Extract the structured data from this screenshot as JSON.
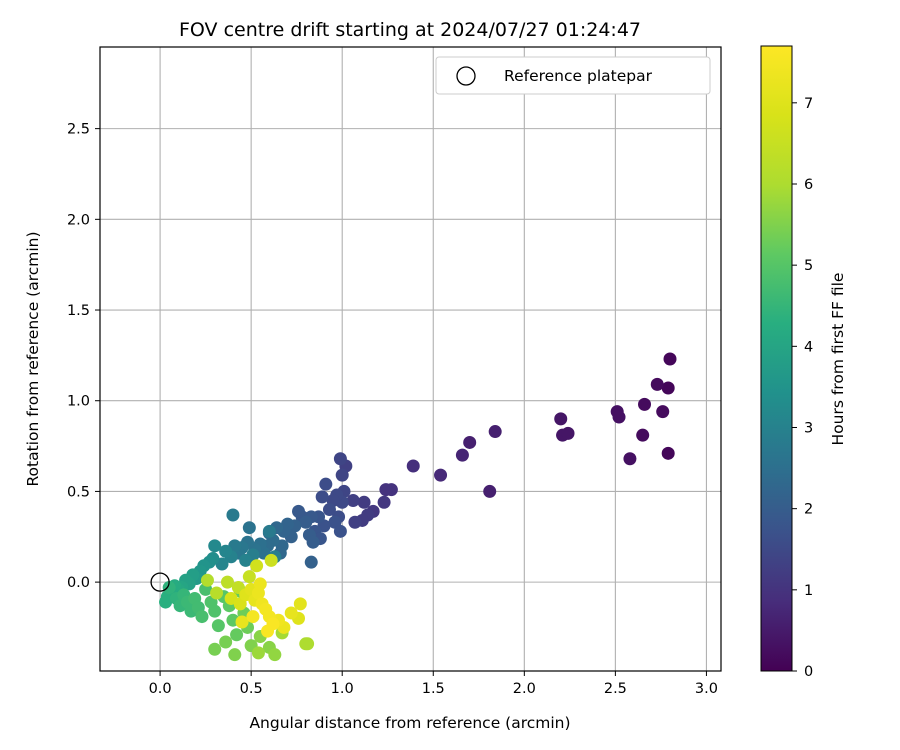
{
  "chart_data": {
    "type": "scatter",
    "title": "FOV centre drift starting at 2024/07/27 01:24:47",
    "xlabel": "Angular distance from reference (arcmin)",
    "ylabel": "Rotation from reference (arcmin)",
    "xlim": [
      -0.33,
      3.08
    ],
    "ylim": [
      -0.49,
      2.95
    ],
    "xticks": [
      0.0,
      0.5,
      1.0,
      1.5,
      2.0,
      2.5,
      3.0
    ],
    "yticks": [
      0.0,
      0.5,
      1.0,
      1.5,
      2.0,
      2.5
    ],
    "grid": true,
    "legend": {
      "placement": "top-right",
      "entries": [
        "Reference platepar"
      ]
    },
    "reference_point": {
      "x": 0.0,
      "y": 0.0
    },
    "colorbar": {
      "label": "Hours from first FF file",
      "range": [
        0,
        7.7
      ],
      "ticks": [
        0,
        1,
        2,
        3,
        4,
        5,
        6,
        7
      ],
      "colormap": "viridis"
    },
    "points": [
      {
        "x": 2.8,
        "y": 1.23,
        "c": 0.1
      },
      {
        "x": 2.79,
        "y": 1.07,
        "c": 0.1
      },
      {
        "x": 2.73,
        "y": 1.09,
        "c": 0.2
      },
      {
        "x": 2.76,
        "y": 0.94,
        "c": 0.2
      },
      {
        "x": 2.66,
        "y": 0.98,
        "c": 0.2
      },
      {
        "x": 2.79,
        "y": 0.71,
        "c": 0.1
      },
      {
        "x": 2.51,
        "y": 0.94,
        "c": 0.3
      },
      {
        "x": 2.52,
        "y": 0.91,
        "c": 0.3
      },
      {
        "x": 2.65,
        "y": 0.81,
        "c": 0.2
      },
      {
        "x": 2.58,
        "y": 0.68,
        "c": 0.3
      },
      {
        "x": 2.2,
        "y": 0.9,
        "c": 0.4
      },
      {
        "x": 2.21,
        "y": 0.81,
        "c": 0.4
      },
      {
        "x": 2.24,
        "y": 0.82,
        "c": 0.4
      },
      {
        "x": 1.84,
        "y": 0.83,
        "c": 0.6
      },
      {
        "x": 1.7,
        "y": 0.77,
        "c": 0.6
      },
      {
        "x": 1.66,
        "y": 0.7,
        "c": 0.7
      },
      {
        "x": 1.81,
        "y": 0.5,
        "c": 0.6
      },
      {
        "x": 1.54,
        "y": 0.59,
        "c": 0.8
      },
      {
        "x": 1.39,
        "y": 0.64,
        "c": 0.9
      },
      {
        "x": 1.27,
        "y": 0.51,
        "c": 1.0
      },
      {
        "x": 1.24,
        "y": 0.51,
        "c": 1.0
      },
      {
        "x": 1.23,
        "y": 0.44,
        "c": 1.1
      },
      {
        "x": 1.17,
        "y": 0.39,
        "c": 1.1
      },
      {
        "x": 1.14,
        "y": 0.37,
        "c": 1.2
      },
      {
        "x": 1.12,
        "y": 0.44,
        "c": 1.2
      },
      {
        "x": 1.11,
        "y": 0.34,
        "c": 1.2
      },
      {
        "x": 1.07,
        "y": 0.33,
        "c": 1.3
      },
      {
        "x": 1.06,
        "y": 0.45,
        "c": 1.3
      },
      {
        "x": 1.02,
        "y": 0.64,
        "c": 1.3
      },
      {
        "x": 0.99,
        "y": 0.68,
        "c": 1.4
      },
      {
        "x": 1.0,
        "y": 0.59,
        "c": 1.4
      },
      {
        "x": 1.01,
        "y": 0.5,
        "c": 1.4
      },
      {
        "x": 1.0,
        "y": 0.44,
        "c": 1.5
      },
      {
        "x": 0.97,
        "y": 0.48,
        "c": 1.5
      },
      {
        "x": 0.95,
        "y": 0.45,
        "c": 1.5
      },
      {
        "x": 0.93,
        "y": 0.4,
        "c": 1.6
      },
      {
        "x": 0.91,
        "y": 0.54,
        "c": 1.6
      },
      {
        "x": 0.89,
        "y": 0.47,
        "c": 1.6
      },
      {
        "x": 0.98,
        "y": 0.36,
        "c": 1.6
      },
      {
        "x": 0.96,
        "y": 0.33,
        "c": 1.7
      },
      {
        "x": 0.99,
        "y": 0.28,
        "c": 1.7
      },
      {
        "x": 0.9,
        "y": 0.31,
        "c": 1.7
      },
      {
        "x": 0.87,
        "y": 0.36,
        "c": 1.8
      },
      {
        "x": 0.85,
        "y": 0.28,
        "c": 1.8
      },
      {
        "x": 0.88,
        "y": 0.24,
        "c": 1.8
      },
      {
        "x": 0.83,
        "y": 0.36,
        "c": 1.9
      },
      {
        "x": 0.78,
        "y": 0.36,
        "c": 1.9
      },
      {
        "x": 0.76,
        "y": 0.39,
        "c": 1.9
      },
      {
        "x": 0.8,
        "y": 0.33,
        "c": 2.0
      },
      {
        "x": 0.82,
        "y": 0.26,
        "c": 2.0
      },
      {
        "x": 0.84,
        "y": 0.22,
        "c": 2.0
      },
      {
        "x": 0.83,
        "y": 0.11,
        "c": 2.1
      },
      {
        "x": 0.74,
        "y": 0.31,
        "c": 2.1
      },
      {
        "x": 0.72,
        "y": 0.25,
        "c": 2.1
      },
      {
        "x": 0.7,
        "y": 0.32,
        "c": 2.2
      },
      {
        "x": 0.68,
        "y": 0.28,
        "c": 2.2
      },
      {
        "x": 0.67,
        "y": 0.2,
        "c": 2.3
      },
      {
        "x": 0.66,
        "y": 0.16,
        "c": 2.3
      },
      {
        "x": 0.64,
        "y": 0.3,
        "c": 2.3
      },
      {
        "x": 0.62,
        "y": 0.23,
        "c": 2.4
      },
      {
        "x": 0.6,
        "y": 0.27,
        "c": 2.4
      },
      {
        "x": 0.59,
        "y": 0.2,
        "c": 2.4
      },
      {
        "x": 0.57,
        "y": 0.16,
        "c": 2.5
      },
      {
        "x": 0.55,
        "y": 0.21,
        "c": 2.5
      },
      {
        "x": 0.52,
        "y": 0.18,
        "c": 2.6
      },
      {
        "x": 0.49,
        "y": 0.3,
        "c": 2.6
      },
      {
        "x": 0.48,
        "y": 0.22,
        "c": 2.6
      },
      {
        "x": 0.45,
        "y": 0.19,
        "c": 2.7
      },
      {
        "x": 0.43,
        "y": 0.16,
        "c": 2.7
      },
      {
        "x": 0.4,
        "y": 0.37,
        "c": 2.8
      },
      {
        "x": 0.41,
        "y": 0.2,
        "c": 2.8
      },
      {
        "x": 0.6,
        "y": 0.28,
        "c": 2.8
      },
      {
        "x": 0.63,
        "y": 0.14,
        "c": 2.9
      },
      {
        "x": 0.51,
        "y": 0.15,
        "c": 2.9
      },
      {
        "x": 0.47,
        "y": 0.12,
        "c": 3.0
      },
      {
        "x": 0.39,
        "y": 0.14,
        "c": 3.0
      },
      {
        "x": 0.36,
        "y": 0.17,
        "c": 3.1
      },
      {
        "x": 0.34,
        "y": 0.1,
        "c": 3.1
      },
      {
        "x": 0.3,
        "y": 0.2,
        "c": 3.2
      },
      {
        "x": 0.29,
        "y": 0.13,
        "c": 3.3
      },
      {
        "x": 0.27,
        "y": 0.11,
        "c": 3.4
      },
      {
        "x": 0.24,
        "y": 0.09,
        "c": 3.5
      },
      {
        "x": 0.22,
        "y": 0.06,
        "c": 3.6
      },
      {
        "x": 0.2,
        "y": 0.02,
        "c": 3.7
      },
      {
        "x": 0.18,
        "y": 0.04,
        "c": 3.8
      },
      {
        "x": 0.16,
        "y": -0.01,
        "c": 3.9
      },
      {
        "x": 0.14,
        "y": 0.01,
        "c": 3.9
      },
      {
        "x": 0.12,
        "y": -0.03,
        "c": 4.0
      },
      {
        "x": 0.1,
        "y": -0.04,
        "c": 4.1
      },
      {
        "x": 0.08,
        "y": -0.02,
        "c": 4.2
      },
      {
        "x": 0.06,
        "y": -0.06,
        "c": 4.2
      },
      {
        "x": 0.04,
        "y": -0.08,
        "c": 4.3
      },
      {
        "x": 0.03,
        "y": -0.11,
        "c": 4.3
      },
      {
        "x": 0.05,
        "y": -0.03,
        "c": 4.4
      },
      {
        "x": 0.09,
        "y": -0.09,
        "c": 4.4
      },
      {
        "x": 0.11,
        "y": -0.13,
        "c": 4.5
      },
      {
        "x": 0.13,
        "y": -0.07,
        "c": 4.5
      },
      {
        "x": 0.15,
        "y": -0.11,
        "c": 4.6
      },
      {
        "x": 0.17,
        "y": -0.16,
        "c": 4.6
      },
      {
        "x": 0.19,
        "y": -0.09,
        "c": 4.7
      },
      {
        "x": 0.21,
        "y": -0.14,
        "c": 4.7
      },
      {
        "x": 0.23,
        "y": -0.19,
        "c": 4.8
      },
      {
        "x": 0.25,
        "y": -0.04,
        "c": 4.8
      },
      {
        "x": 0.28,
        "y": -0.11,
        "c": 4.9
      },
      {
        "x": 0.3,
        "y": -0.16,
        "c": 4.9
      },
      {
        "x": 0.32,
        "y": -0.24,
        "c": 5.0
      },
      {
        "x": 0.35,
        "y": -0.08,
        "c": 5.0
      },
      {
        "x": 0.38,
        "y": -0.13,
        "c": 5.1
      },
      {
        "x": 0.4,
        "y": -0.21,
        "c": 5.1
      },
      {
        "x": 0.42,
        "y": -0.29,
        "c": 5.2
      },
      {
        "x": 0.44,
        "y": -0.05,
        "c": 5.2
      },
      {
        "x": 0.46,
        "y": -0.17,
        "c": 5.3
      },
      {
        "x": 0.48,
        "y": -0.25,
        "c": 5.3
      },
      {
        "x": 0.36,
        "y": -0.33,
        "c": 5.4
      },
      {
        "x": 0.3,
        "y": -0.37,
        "c": 5.4
      },
      {
        "x": 0.41,
        "y": -0.4,
        "c": 5.5
      },
      {
        "x": 0.5,
        "y": -0.35,
        "c": 5.5
      },
      {
        "x": 0.55,
        "y": -0.3,
        "c": 5.6
      },
      {
        "x": 0.6,
        "y": -0.36,
        "c": 5.6
      },
      {
        "x": 0.63,
        "y": -0.4,
        "c": 5.7
      },
      {
        "x": 0.54,
        "y": -0.39,
        "c": 5.8
      },
      {
        "x": 0.67,
        "y": -0.28,
        "c": 5.9
      },
      {
        "x": 0.8,
        "y": -0.34,
        "c": 6.0
      },
      {
        "x": 0.81,
        "y": -0.34,
        "c": 6.0
      },
      {
        "x": 0.26,
        "y": 0.01,
        "c": 6.1
      },
      {
        "x": 0.31,
        "y": -0.06,
        "c": 6.2
      },
      {
        "x": 0.37,
        "y": 0.0,
        "c": 6.3
      },
      {
        "x": 0.43,
        "y": -0.03,
        "c": 6.4
      },
      {
        "x": 0.49,
        "y": 0.03,
        "c": 6.5
      },
      {
        "x": 0.61,
        "y": 0.12,
        "c": 6.6
      },
      {
        "x": 0.53,
        "y": 0.09,
        "c": 6.7
      },
      {
        "x": 0.39,
        "y": -0.09,
        "c": 6.8
      },
      {
        "x": 0.44,
        "y": -0.12,
        "c": 6.9
      },
      {
        "x": 0.47,
        "y": -0.07,
        "c": 7.0
      },
      {
        "x": 0.5,
        "y": -0.04,
        "c": 7.1
      },
      {
        "x": 0.52,
        "y": -0.1,
        "c": 7.2
      },
      {
        "x": 0.54,
        "y": -0.06,
        "c": 7.3
      },
      {
        "x": 0.56,
        "y": -0.12,
        "c": 7.4
      },
      {
        "x": 0.58,
        "y": -0.15,
        "c": 7.5
      },
      {
        "x": 0.6,
        "y": -0.19,
        "c": 7.5
      },
      {
        "x": 0.62,
        "y": -0.23,
        "c": 7.6
      },
      {
        "x": 0.59,
        "y": -0.27,
        "c": 7.6
      },
      {
        "x": 0.65,
        "y": -0.21,
        "c": 7.4
      },
      {
        "x": 0.68,
        "y": -0.25,
        "c": 7.3
      },
      {
        "x": 0.72,
        "y": -0.17,
        "c": 7.2
      },
      {
        "x": 0.76,
        "y": -0.2,
        "c": 7.0
      },
      {
        "x": 0.77,
        "y": -0.12,
        "c": 7.1
      },
      {
        "x": 0.51,
        "y": -0.19,
        "c": 7.5
      },
      {
        "x": 0.55,
        "y": -0.01,
        "c": 7.3
      },
      {
        "x": 0.45,
        "y": -0.22,
        "c": 7.2
      }
    ]
  }
}
